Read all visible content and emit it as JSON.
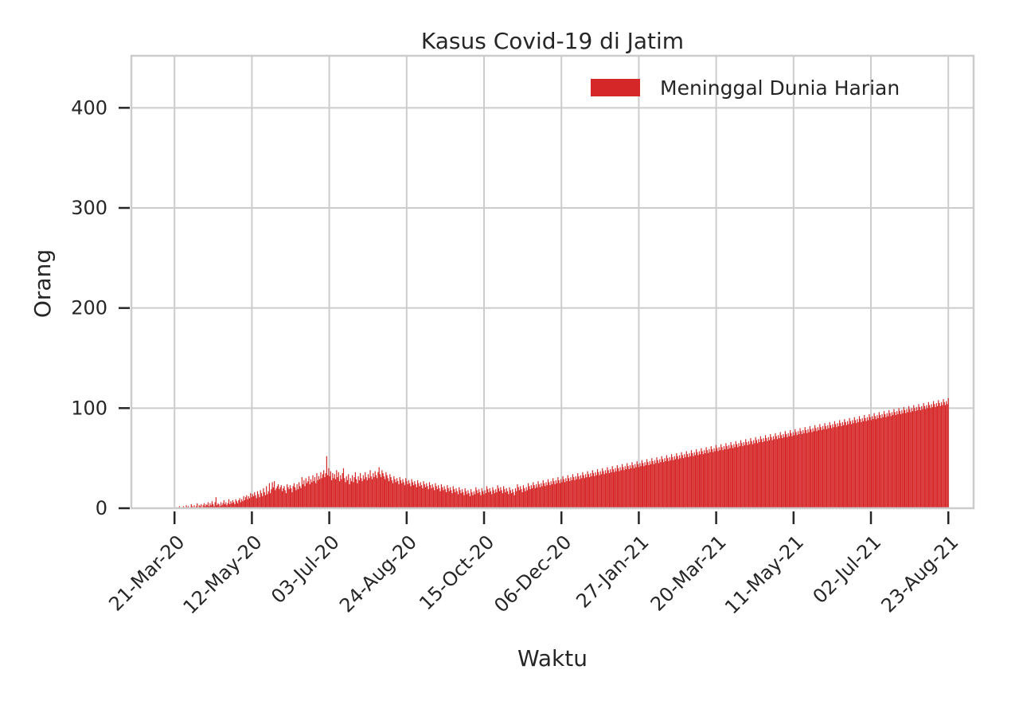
{
  "chart_data": {
    "type": "bar",
    "title": "Kasus Covid-19 di Jatim",
    "xlabel": "Waktu",
    "ylabel": "Orang",
    "ylim": [
      0,
      452
    ],
    "xlim": [
      "2020-02-21",
      "2021-09-09"
    ],
    "x_ticks": [
      "21-Mar-20",
      "12-May-20",
      "03-Jul-20",
      "24-Aug-20",
      "15-Oct-20",
      "06-Dec-20",
      "27-Jan-21",
      "20-Mar-21",
      "11-May-21",
      "02-Jul-21",
      "23-Aug-21"
    ],
    "y_ticks": [
      0,
      100,
      200,
      300,
      400
    ],
    "grid": true,
    "legend_position": "top-right",
    "series": [
      {
        "name": "Meninggal Dunia Harian",
        "color": "#d62728",
        "start_date": "2020-03-21",
        "end_date": "2021-08-23",
        "values": [
          0,
          0,
          1,
          0,
          1,
          2,
          0,
          1,
          0,
          2,
          1,
          0,
          3,
          1,
          2,
          0,
          1,
          4,
          2,
          1,
          3,
          0,
          2,
          5,
          1,
          3,
          2,
          4,
          1,
          3,
          5,
          2,
          4,
          3,
          6,
          2,
          5,
          3,
          7,
          4,
          2,
          6,
          11,
          3,
          5,
          4,
          2,
          6,
          3,
          5,
          8,
          4,
          6,
          3,
          5,
          9,
          4,
          7,
          5,
          8,
          6,
          4,
          9,
          7,
          5,
          8,
          10,
          6,
          9,
          7,
          12,
          8,
          11,
          13,
          9,
          12,
          10,
          15,
          11,
          14,
          12,
          16,
          13,
          10,
          17,
          14,
          11,
          18,
          15,
          12,
          20,
          16,
          13,
          22,
          14,
          17,
          25,
          15,
          19,
          26,
          21,
          27,
          18,
          20,
          22,
          24,
          19,
          21,
          23,
          17,
          20,
          22,
          18,
          15,
          24,
          21,
          19,
          23,
          20,
          16,
          22,
          25,
          21,
          18,
          24,
          19,
          26,
          22,
          20,
          31,
          24,
          28,
          22,
          30,
          25,
          27,
          32,
          24,
          29,
          26,
          33,
          27,
          31,
          25,
          35,
          28,
          32,
          29,
          36,
          30,
          34,
          38,
          31,
          35,
          52,
          33,
          40,
          32,
          37,
          28,
          35,
          30,
          34,
          29,
          38,
          31,
          36,
          27,
          33,
          29,
          35,
          40,
          30,
          26,
          32,
          28,
          34,
          24,
          30,
          27,
          33,
          26,
          31,
          36,
          29,
          25,
          32,
          28,
          35,
          30,
          27,
          33,
          29,
          36,
          31,
          28,
          34,
          30,
          38,
          32,
          29,
          35,
          31,
          37,
          33,
          30,
          36,
          41,
          34,
          31,
          38,
          35,
          32,
          29,
          36,
          33,
          30,
          27,
          34,
          31,
          28,
          25,
          32,
          29,
          26,
          30,
          27,
          24,
          31,
          28,
          25,
          29,
          26,
          23,
          30,
          27,
          24,
          28,
          25,
          22,
          29,
          26,
          23,
          27,
          24,
          21,
          28,
          25,
          22,
          26,
          23,
          20,
          27,
          24,
          21,
          25,
          22,
          19,
          26,
          23,
          20,
          24,
          21,
          18,
          25,
          22,
          19,
          23,
          20,
          17,
          24,
          21,
          18,
          22,
          19,
          16,
          23,
          20,
          17,
          21,
          18,
          15,
          22,
          19,
          16,
          20,
          17,
          14,
          21,
          18,
          15,
          19,
          16,
          13,
          20,
          17,
          14,
          18,
          15,
          12,
          19,
          16,
          13,
          17,
          14,
          21,
          18,
          15,
          19,
          16,
          13,
          20,
          17,
          14,
          18,
          15,
          22,
          19,
          16,
          20,
          17,
          14,
          21,
          18,
          15,
          19,
          16,
          23,
          20,
          17,
          21,
          18,
          15,
          22,
          19,
          16,
          20,
          17,
          14,
          21,
          18,
          15,
          19,
          16,
          13,
          20,
          17,
          24,
          21,
          18,
          22,
          19,
          16,
          23,
          20,
          17,
          21,
          18,
          25,
          22,
          19,
          23,
          20,
          26,
          23,
          20,
          24,
          21,
          27,
          24,
          21,
          25,
          22,
          28,
          25,
          22,
          26,
          23,
          29,
          26,
          23,
          27,
          24,
          30,
          27,
          24,
          28,
          25,
          31,
          28,
          25,
          29,
          26,
          32,
          29,
          26,
          30,
          27,
          33,
          30,
          27,
          31,
          28,
          34,
          31,
          28,
          32,
          29,
          35,
          32,
          29,
          33,
          30,
          36,
          33,
          30,
          34,
          31,
          37,
          34,
          31,
          35,
          32,
          38,
          35,
          32,
          36,
          33,
          39,
          36,
          33,
          37,
          34,
          40,
          37,
          34,
          38,
          35,
          41,
          38,
          35,
          39,
          36,
          42,
          39,
          36,
          40,
          37,
          43,
          40,
          37,
          41,
          38,
          44,
          41,
          38,
          42,
          39,
          45,
          42,
          39,
          43,
          40,
          46,
          43,
          40,
          44,
          41,
          47,
          44,
          41,
          45,
          42,
          48,
          45,
          42,
          46,
          43,
          49,
          46,
          43,
          47,
          44,
          50,
          47,
          44,
          48,
          45,
          51,
          48,
          45,
          49,
          46,
          52,
          49,
          46,
          50,
          47,
          53,
          50,
          47,
          51,
          48,
          54,
          51,
          48,
          52,
          49,
          55,
          52,
          49,
          53,
          50,
          56,
          53,
          50,
          54,
          51,
          57,
          54,
          51,
          55,
          52,
          58,
          55,
          52,
          56,
          53,
          59,
          56,
          53,
          57,
          54,
          60,
          57,
          54,
          58,
          55,
          61,
          58,
          55,
          59,
          56,
          62,
          59,
          56,
          60,
          57,
          63,
          60,
          57,
          61,
          58,
          64,
          61,
          58,
          62,
          59,
          65,
          62,
          59,
          63,
          60,
          66,
          63,
          60,
          64,
          61,
          67,
          64,
          61,
          65,
          62,
          68,
          65,
          62,
          66,
          63,
          69,
          66,
          63,
          67,
          64,
          70,
          67,
          64,
          68,
          65,
          71,
          68,
          65,
          69,
          66,
          72,
          69,
          66,
          70,
          67,
          73,
          70,
          67,
          71,
          68,
          74,
          71,
          68,
          72,
          69,
          75,
          72,
          69,
          73,
          70,
          76,
          73,
          70,
          74,
          71,
          77,
          74,
          71,
          75,
          72,
          78,
          75,
          72,
          76,
          73,
          79,
          76,
          73,
          77,
          74,
          80,
          77,
          74,
          78,
          75,
          81,
          78,
          75,
          79,
          76,
          82,
          79,
          76,
          80,
          77,
          83,
          80,
          77,
          81,
          78,
          84,
          81,
          78,
          82,
          79,
          85,
          82,
          79,
          83,
          80,
          86,
          83,
          80,
          84,
          81,
          87,
          84,
          81,
          85,
          82,
          88,
          85,
          82,
          86,
          83,
          89,
          86,
          83,
          87,
          84,
          90,
          87,
          84,
          88,
          85,
          91,
          88,
          85,
          89,
          86,
          92,
          89,
          86,
          90,
          87,
          93,
          90,
          87,
          91,
          88,
          94,
          91,
          88,
          92,
          89,
          95,
          92,
          89,
          93,
          90,
          96,
          93,
          90,
          94,
          91,
          97,
          94,
          91,
          95,
          92,
          98,
          95,
          92,
          96,
          93,
          99,
          96,
          93,
          97,
          94,
          100,
          97,
          94,
          98,
          95,
          101,
          98,
          95,
          99,
          96,
          102,
          99,
          96,
          100,
          97,
          103,
          100,
          97,
          101,
          98,
          104,
          101,
          98,
          102,
          99,
          105,
          102,
          99,
          103,
          100,
          106,
          103,
          100,
          104,
          101,
          107,
          104,
          101,
          105,
          102,
          108,
          105,
          102,
          106,
          103,
          109,
          106,
          103,
          107,
          104,
          110
        ]
      }
    ]
  }
}
